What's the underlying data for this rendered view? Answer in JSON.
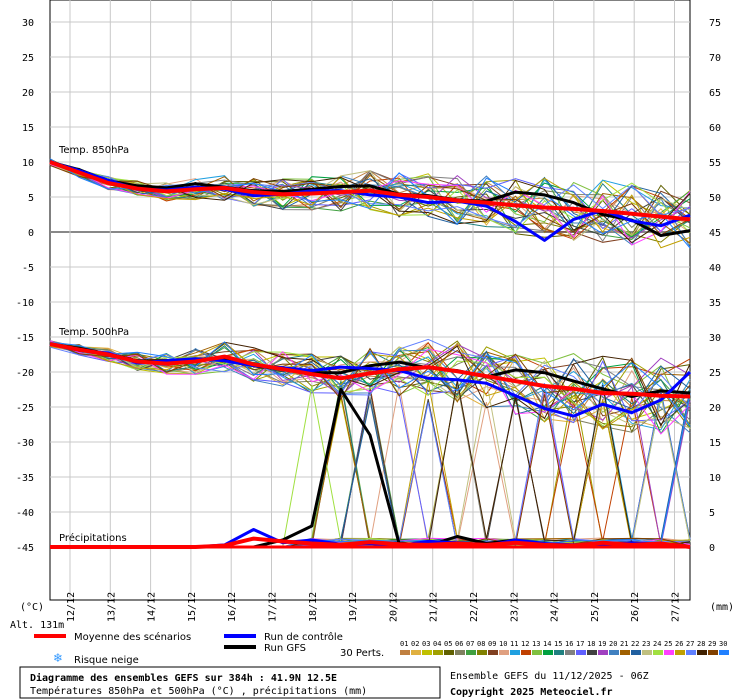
{
  "chart_data": {
    "type": "line",
    "left_axis": {
      "unit": "(°C)",
      "ylim": [
        -45,
        30
      ],
      "ticks": [
        30,
        25,
        20,
        15,
        10,
        5,
        0,
        -5,
        -10,
        -15,
        -20,
        -25,
        -30,
        -35,
        -40,
        -45
      ]
    },
    "right_axis": {
      "unit": "(mm)",
      "ylim": [
        0,
        75
      ],
      "ticks": [
        75,
        70,
        65,
        60,
        55,
        50,
        45,
        40,
        35,
        30,
        25,
        20,
        15,
        10,
        5,
        0
      ]
    },
    "x_days": [
      "12/12",
      "13/12",
      "14/12",
      "15/12",
      "16/12",
      "17/12",
      "18/12",
      "19/12",
      "20/12",
      "21/12",
      "22/12",
      "23/12",
      "24/12",
      "25/12",
      "26/12",
      "27/12"
    ],
    "altitude_label": "Alt. 131m",
    "panel_labels": {
      "t850": "Temp. 850hPa",
      "t500": "Temp. 500hPa",
      "precip": "Précipitations"
    },
    "series": [
      {
        "name": "Moyenne des scénarios",
        "color": "#ff0000",
        "t850": [
          10,
          8.5,
          7,
          6.2,
          5.8,
          6.1,
          6.3,
          5.7,
          5.4,
          5.5,
          5.7,
          5.9,
          5.3,
          5,
          4.5,
          4.2,
          3.8,
          3.5,
          3.3,
          3,
          2.6,
          2.2,
          1.8
        ],
        "t500": [
          -16,
          -16.8,
          -17.5,
          -18.5,
          -18.8,
          -18.5,
          -17.8,
          -18.9,
          -19.6,
          -20.3,
          -20.9,
          -20.2,
          -19.6,
          -19.3,
          -19.9,
          -20.6,
          -21.3,
          -22,
          -22.4,
          -23,
          -23.1,
          -23.4,
          -23.5
        ],
        "precip": [
          0,
          0,
          0,
          0,
          0,
          0,
          0.2,
          1.2,
          0.8,
          0.5,
          0.3,
          0.7,
          0.4,
          0.3,
          0.5,
          0.3,
          0.6,
          0.3,
          0.2,
          0.6,
          0.3,
          0.5,
          0
        ]
      },
      {
        "name": "Run de contrôle",
        "color": "#0000ff",
        "t850": [
          10,
          8.8,
          7.4,
          6.1,
          6,
          6.4,
          6.1,
          5.2,
          5.4,
          5.9,
          5.9,
          5.3,
          5,
          4.2,
          4.4,
          3.7,
          1.5,
          -1.2,
          1.8,
          3.1,
          1.6,
          0.9,
          2.4
        ],
        "t500": [
          -16,
          -16.9,
          -17.3,
          -18.7,
          -18.4,
          -18.1,
          -18.4,
          -19.1,
          -19.4,
          -19.8,
          -19.3,
          -19.5,
          -19.8,
          -20.9,
          -21.1,
          -21.6,
          -23.4,
          -25.2,
          -26.3,
          -24.6,
          -25.8,
          -24,
          -20
        ],
        "precip": [
          0,
          0,
          0,
          0,
          0,
          0,
          0.3,
          2.5,
          0.6,
          1,
          0.4,
          0.5,
          0.2,
          0.8,
          0.6,
          0.2,
          1,
          0.5,
          0.3,
          0.4,
          0.6,
          0.4,
          0
        ]
      },
      {
        "name": "Run GFS",
        "color": "#000000",
        "t850": [
          10,
          8.9,
          7.3,
          6.6,
          6.3,
          6.9,
          6.4,
          5.9,
          5.8,
          6.1,
          6.5,
          6.6,
          5.4,
          5.2,
          4.6,
          4.4,
          5.7,
          5.3,
          4.2,
          2.5,
          1.7,
          -0.5,
          0.2
        ],
        "t500": [
          -16,
          -16.6,
          -17.4,
          -18.4,
          -18.6,
          -18.2,
          -18.1,
          -19.1,
          -19.6,
          -20.1,
          -20.1,
          -19.1,
          -18.6,
          -19.4,
          -19.8,
          -20.7,
          -19.7,
          -20.1,
          -21.3,
          -22.4,
          -23.5,
          -22.7,
          -23
        ],
        "precip": [
          0,
          0,
          0,
          0,
          0,
          0,
          0,
          0,
          1,
          3,
          22.5,
          16,
          0.5,
          0.2,
          1.5,
          0.5,
          1,
          0.3,
          0.2,
          0.4,
          0.6,
          0.2,
          0
        ]
      }
    ],
    "perturbations_label": "30 Perts.",
    "perturbation_colors": [
      "#c08040",
      "#e0b040",
      "#c0c000",
      "#a0a000",
      "#606000",
      "#808060",
      "#40a040",
      "#808000",
      "#804020",
      "#e0a080",
      "#20a0e0",
      "#c04000",
      "#80c040",
      "#00a040",
      "#208080",
      "#808080",
      "#6060ff",
      "#404040",
      "#a040c0",
      "#4080c0",
      "#a06000",
      "#2060a0",
      "#c0c080",
      "#a0e040",
      "#ff40ff",
      "#c0a000",
      "#6080ff",
      "#402000",
      "#804000",
      "#2080ff"
    ],
    "legend": {
      "mean": "Moyenne des scénarios",
      "control": "Run de contrôle",
      "gfs": "Run GFS",
      "snow": "Risque neige"
    },
    "footer": {
      "title": "Diagramme des ensembles GEFS sur 384h : 41.9N 12.5E",
      "subtitle": "Températures 850hPa et 500hPa (°C) , précipitations (mm)",
      "run": "Ensemble GEFS du 11/12/2025 - 06Z",
      "copyright": "Copyright 2025 Meteociel.fr"
    }
  }
}
